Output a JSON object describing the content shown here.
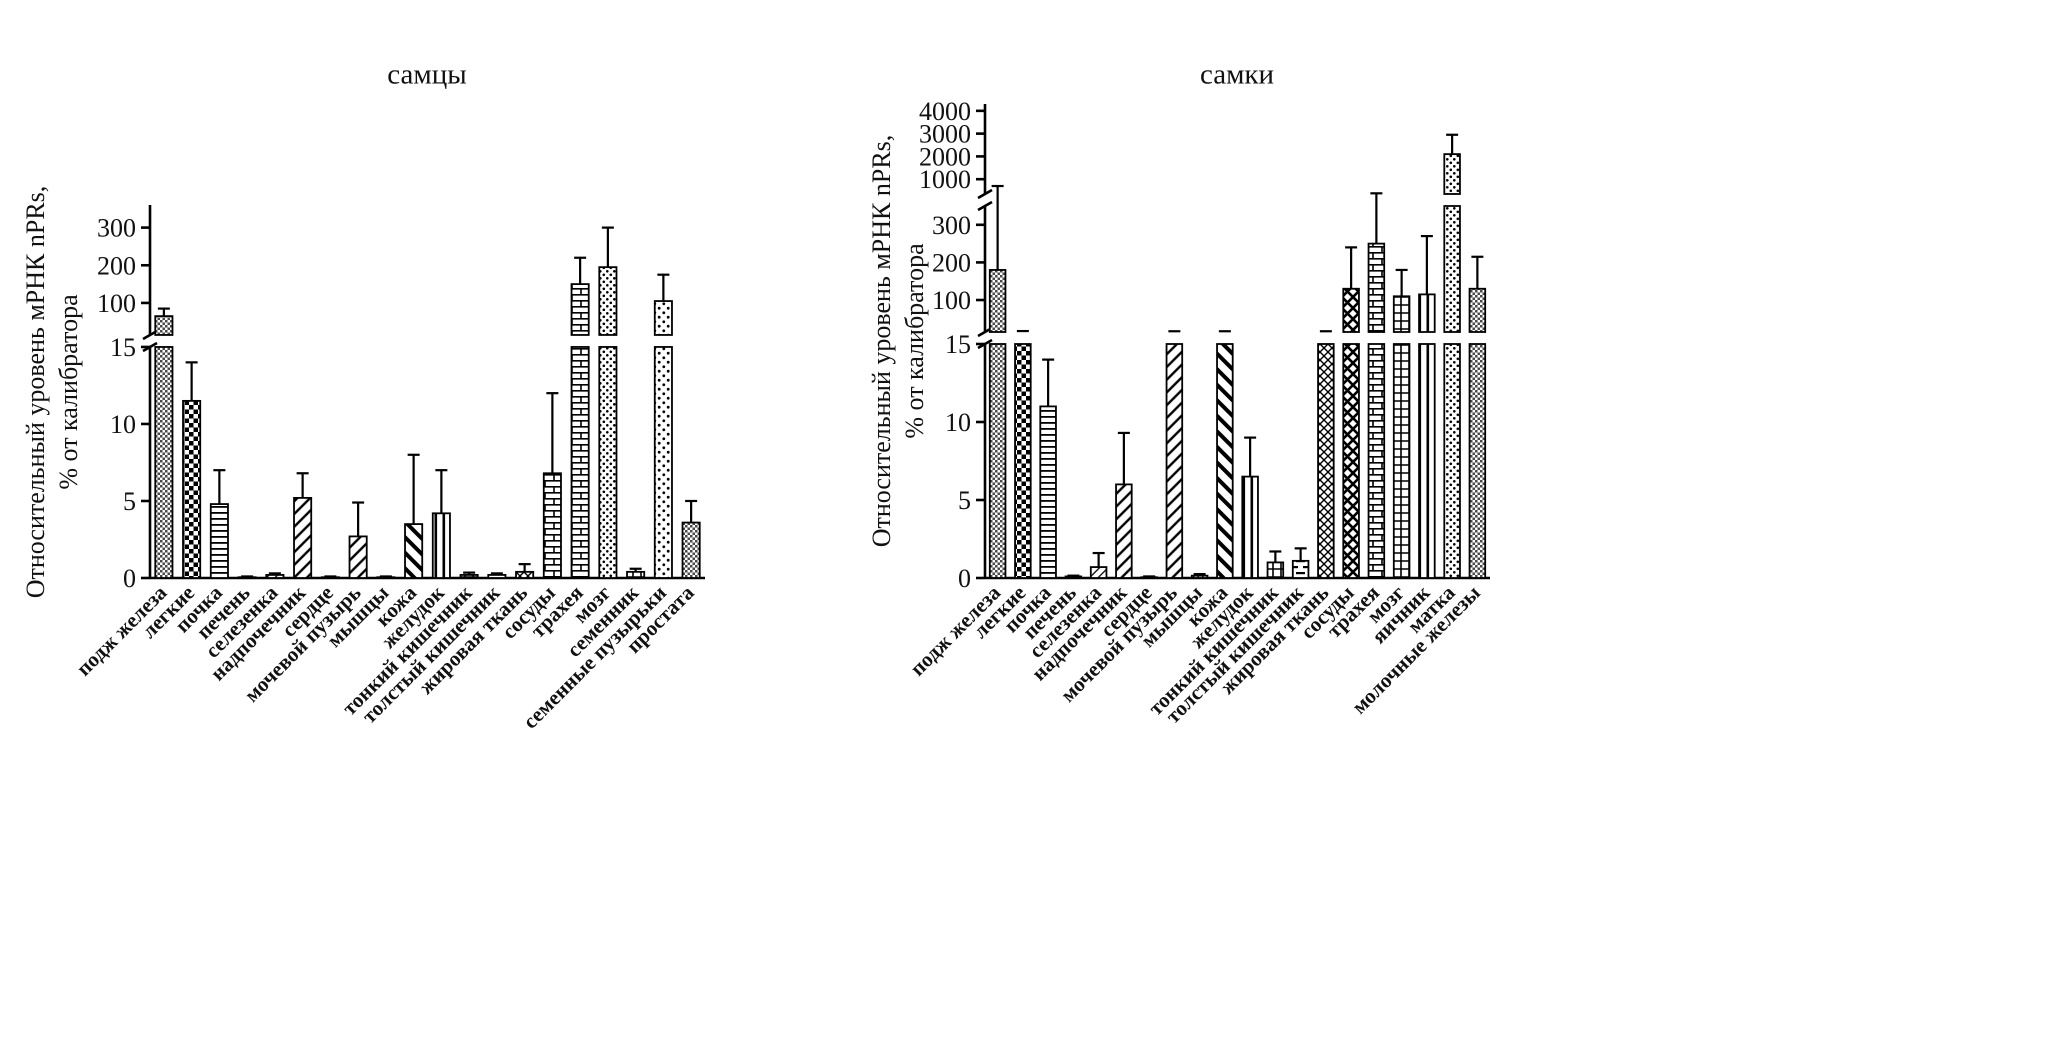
{
  "chart_data": [
    {
      "type": "bar",
      "title": "самцы",
      "ylabel": [
        "Относительный уровень мРНК nPRs,",
        "% от калибратора"
      ],
      "categories": [
        "подж железа",
        "легкие",
        "почка",
        "печень",
        "селезенка",
        "надпочечник",
        "сердце",
        "мочевой пузырь",
        "мышцы",
        "кожа",
        "желудок",
        "тонкий кишечник",
        "толстый кишечник",
        "жировая ткань",
        "сосуды",
        "трахея",
        "мозг",
        "семенник",
        "семенные пузырьки",
        "простата"
      ],
      "values": [
        65,
        11.5,
        4.8,
        0.05,
        0.2,
        5.2,
        0.05,
        2.7,
        0.05,
        3.5,
        4.2,
        0.2,
        0.2,
        0.4,
        6.8,
        150,
        195,
        0.4,
        105,
        3.6
      ],
      "errors_top": [
        85,
        14,
        7,
        0.1,
        0.3,
        6.8,
        0.1,
        4.9,
        0.1,
        8,
        7,
        0.35,
        0.3,
        0.9,
        12,
        220,
        300,
        0.6,
        175,
        5
      ],
      "patterns": [
        "checker-fine",
        "checker",
        "hlines",
        "grid-fine",
        "diag-thin",
        "diag",
        "vlines-thin",
        "diag",
        "dots-fine",
        "diag-bold",
        "vlines",
        "grid",
        "hdash",
        "crosshatch",
        "brick",
        "brick",
        "dots",
        "grid",
        "dots-sparse",
        "checker-fine"
      ],
      "axis_segments": [
        {
          "domain": [
            0,
            15
          ],
          "ticks": [
            0,
            5,
            10,
            15
          ],
          "frac": 0.64
        },
        {
          "domain": [
            15,
            360
          ],
          "ticks": [
            100,
            200,
            300
          ],
          "frac": 0.36
        }
      ],
      "grid": false,
      "legend": "none"
    },
    {
      "type": "bar",
      "title": "самки",
      "ylabel": [
        "Относительный уровень мРНК nPRs,",
        "% от калибратора"
      ],
      "categories": [
        "подж железа",
        "легкие",
        "почка",
        "печень",
        "селезенка",
        "надпочечник",
        "сердце",
        "мочевой пузырь",
        "мышцы",
        "кожа",
        "желудок",
        "тонкий кишечник",
        "толстый кишечник",
        "жировая ткань",
        "сосуды",
        "трахея",
        "мозг",
        "яичник",
        "матка",
        "молочные железы"
      ],
      "values": [
        180,
        16,
        11,
        0.1,
        0.7,
        6,
        0.05,
        16,
        0.15,
        16,
        6.5,
        1.0,
        1.1,
        16,
        130,
        250,
        110,
        115,
        2100,
        130
      ],
      "errors_top": [
        700,
        17.5,
        14,
        0.15,
        1.6,
        9.3,
        0.1,
        17,
        0.25,
        17,
        9,
        1.7,
        1.9,
        17,
        240,
        380,
        180,
        270,
        2950,
        215
      ],
      "patterns": [
        "checker-fine",
        "checker",
        "hlines",
        "grid-fine",
        "diag-thin",
        "diag",
        "vlines-thin",
        "diag",
        "dots-fine",
        "diag-bold",
        "vlines",
        "grid",
        "hdash",
        "crosshatch",
        "crosshatch-bold",
        "brick",
        "grid",
        "vlines",
        "dots",
        "checker-fine"
      ],
      "axis_segments": [
        {
          "domain": [
            0,
            15
          ],
          "ticks": [
            0,
            5,
            10,
            15
          ],
          "frac": 0.52
        },
        {
          "domain": [
            15,
            350
          ],
          "ticks": [
            100,
            200,
            300
          ],
          "frac": 0.28
        },
        {
          "domain": [
            350,
            4300
          ],
          "ticks": [
            1000,
            2000,
            3000,
            4000
          ],
          "frac": 0.2
        }
      ],
      "grid": false,
      "legend": "none"
    }
  ]
}
